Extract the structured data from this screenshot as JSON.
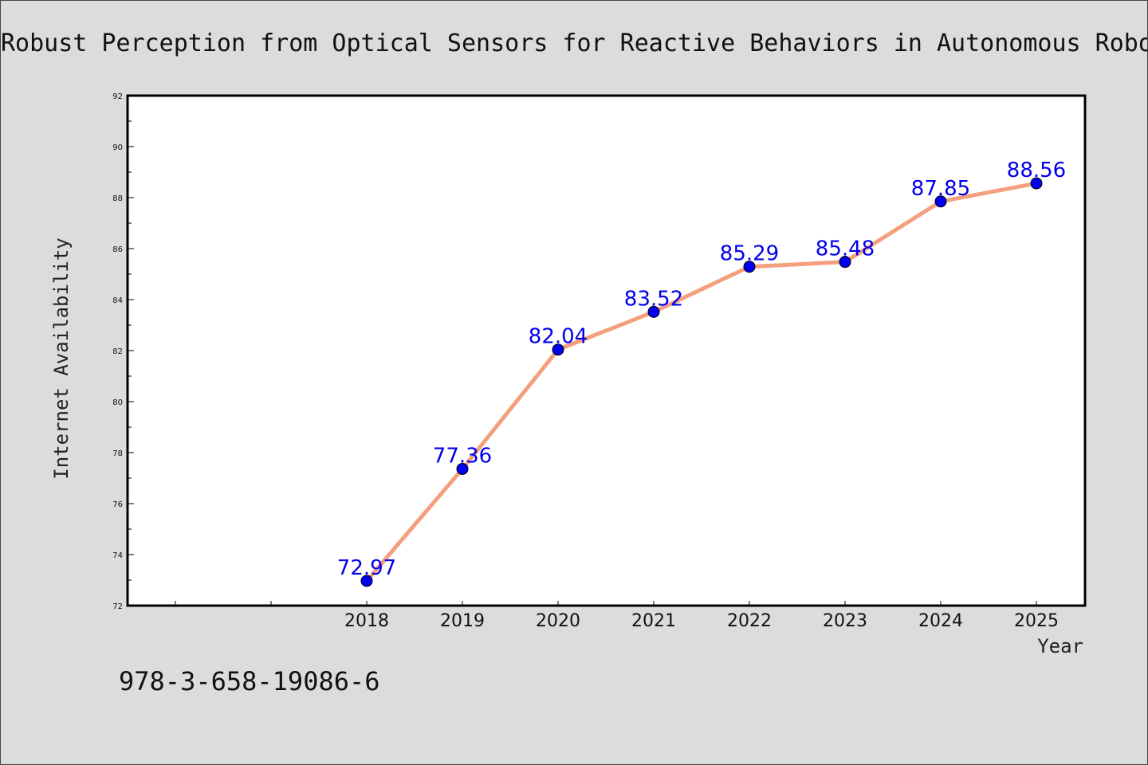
{
  "chart_data": {
    "type": "line",
    "title": "Robust Perception from Optical Sensors for Reactive Behaviors in Autonomous Robo",
    "xlabel": "Year",
    "ylabel": "Internet Availability",
    "x": [
      "2018",
      "2019",
      "2020",
      "2021",
      "2022",
      "2023",
      "2024",
      "2025"
    ],
    "series": [
      {
        "values": [
          72.97,
          77.36,
          82.04,
          83.52,
          85.29,
          85.48,
          87.85,
          88.56
        ],
        "line_color": "#f4a07f",
        "marker_color": "#0000ee"
      }
    ],
    "data_labels": [
      "72.97",
      "77.36",
      "82.04",
      "83.52",
      "85.29",
      "85.48",
      "87.85",
      "88.56"
    ],
    "ylim": [
      72,
      92
    ],
    "yticks": [
      "72",
      "74",
      "76",
      "78",
      "80",
      "82",
      "84",
      "86",
      "88",
      "90",
      "92"
    ],
    "grid": false,
    "legend": "none"
  },
  "footer_text": "978-3-658-19086-6"
}
